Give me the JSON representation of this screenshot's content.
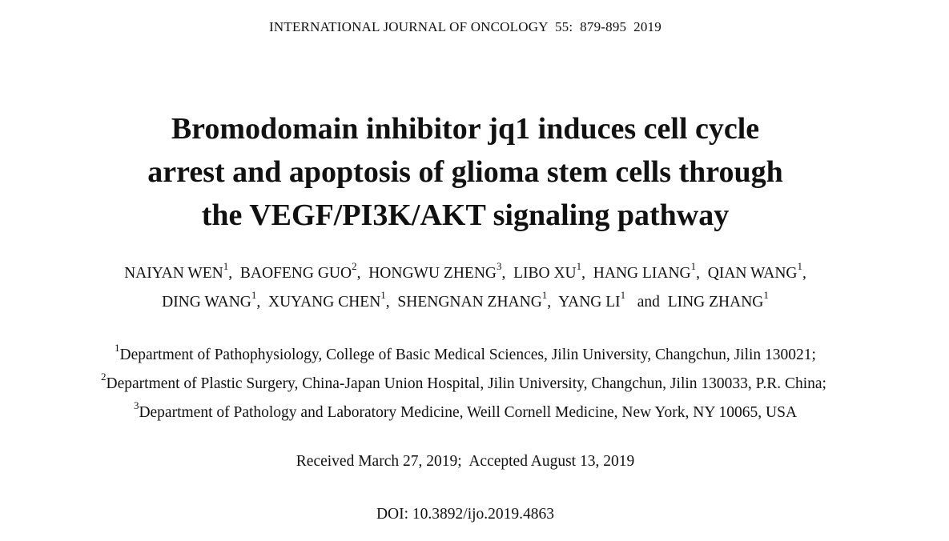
{
  "header": {
    "running_title": "INTERNATIONAL JOURNAL OF ONCOLOGY  55:  879-895  2019"
  },
  "title": {
    "lines": [
      "Bromodomain inhibitor jq1 induces cell cycle",
      "arrest and apoptosis of glioma stem cells through",
      "the VEGF/PI3K/AKT signaling pathway"
    ]
  },
  "authors": {
    "line1": [
      {
        "name": "NAIYAN WEN",
        "sup": "1"
      },
      {
        "name": "BAOFENG GUO",
        "sup": "2"
      },
      {
        "name": "HONGWU ZHENG",
        "sup": "3"
      },
      {
        "name": "LIBO XU",
        "sup": "1"
      },
      {
        "name": "HANG LIANG",
        "sup": "1"
      },
      {
        "name": "QIAN WANG",
        "sup": "1"
      }
    ],
    "line2": [
      {
        "name": "DING WANG",
        "sup": "1"
      },
      {
        "name": "XUYANG CHEN",
        "sup": "1"
      },
      {
        "name": "SHENGNAN ZHANG",
        "sup": "1"
      },
      {
        "name": "YANG LI",
        "sup": "1"
      }
    ],
    "conjunction": "and",
    "last": {
      "name": "LING ZHANG",
      "sup": "1"
    }
  },
  "affiliations": [
    {
      "sup": "1",
      "text": "Department of Pathophysiology, College of Basic Medical Sciences, Jilin University, Changchun, Jilin 130021;"
    },
    {
      "sup": "2",
      "text": "Department of Plastic Surgery, China-Japan Union Hospital, Jilin University, Changchun, Jilin 130033, P.R. China;"
    },
    {
      "sup": "3",
      "text": "Department of Pathology and Laboratory Medicine, Weill Cornell Medicine, New York, NY 10065, USA"
    }
  ],
  "dates": {
    "received": "Received March 27, 2019;",
    "accepted": "Accepted August 13, 2019"
  },
  "doi": {
    "label": "DOI:",
    "value": "10.3892/ijo.2019.4863"
  }
}
